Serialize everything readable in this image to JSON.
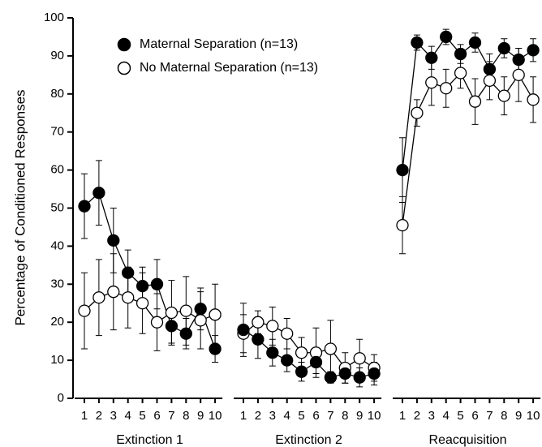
{
  "chart_data": {
    "type": "line",
    "y_label": "Percentage of Conditioned Responses",
    "ylim": [
      0,
      100
    ],
    "yticks": [
      0,
      10,
      20,
      30,
      40,
      50,
      60,
      70,
      80,
      90,
      100
    ],
    "legend": "upper-left",
    "series": [
      {
        "name": "Maternal Separation (n=13)",
        "color": "#000000",
        "marker": "filled"
      },
      {
        "name": "No Maternal Separation (n=13)",
        "color": "#000000",
        "marker": "open"
      }
    ],
    "panels": [
      {
        "label": "Extinction 1",
        "categories": [
          "1",
          "2",
          "3",
          "4",
          "5",
          "6",
          "7",
          "8",
          "9",
          "10"
        ],
        "series": [
          {
            "values": [
              50.5,
              54,
              41.5,
              33,
              29.5,
              30,
              19,
              17,
              23.5,
              13
            ],
            "errors": [
              8.5,
              8.5,
              8.5,
              6,
              5,
              6.5,
              4.5,
              4,
              5.5,
              3.5
            ]
          },
          {
            "values": [
              23,
              26.5,
              28,
              26.5,
              25,
              20,
              22.5,
              23,
              20.5,
              22
            ],
            "errors": [
              10,
              10,
              10,
              8,
              8,
              7.5,
              8.5,
              9,
              7.5,
              8
            ]
          }
        ]
      },
      {
        "label": "Extinction 2",
        "categories": [
          "1",
          "2",
          "3",
          "4",
          "5",
          "6",
          "7",
          "8",
          "9",
          "10"
        ],
        "series": [
          {
            "values": [
              18,
              15.5,
              12,
              10,
              7,
              9.5,
              5.5,
              6.5,
              5.5,
              6.5
            ],
            "errors": [
              7,
              5,
              3.5,
              3,
              2.5,
              3,
              1.5,
              2.5,
              2.5,
              3
            ]
          },
          {
            "values": [
              17,
              20,
              19,
              17,
              12,
              12,
              13,
              8,
              10.5,
              8
            ],
            "errors": [
              5,
              3,
              5,
              4,
              4,
              6.5,
              7.5,
              4,
              5,
              3.5
            ]
          }
        ]
      },
      {
        "label": "Reacquisition",
        "categories": [
          "1",
          "2",
          "3",
          "4",
          "5",
          "6",
          "7",
          "8",
          "9",
          "10"
        ],
        "series": [
          {
            "values": [
              60,
              93.5,
              89.5,
              95,
              90.5,
              93.5,
              86.5,
              92,
              89,
              91.5
            ],
            "errors": [
              8.5,
              2,
              3,
              2,
              2.5,
              2.5,
              4,
              2.5,
              3,
              3
            ]
          },
          {
            "values": [
              45.5,
              75,
              83,
              81.5,
              85.5,
              78,
              83.5,
              79.5,
              85,
              78.5
            ],
            "errors": [
              7.5,
              3.5,
              6,
              5,
              4,
              6,
              5,
              5,
              7,
              6
            ]
          }
        ]
      }
    ]
  }
}
